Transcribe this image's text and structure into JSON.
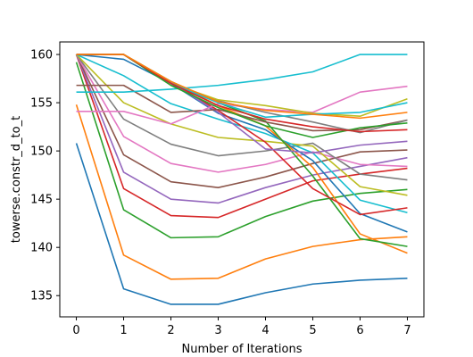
{
  "chart_data": {
    "type": "line",
    "title": "",
    "xlabel": "Number of Iterations",
    "ylabel": "towerse.constr_d_to_t",
    "x": [
      0,
      1,
      2,
      3,
      4,
      5,
      6,
      7
    ],
    "xticks": [
      "0",
      "1",
      "2",
      "3",
      "4",
      "5",
      "6",
      "7"
    ],
    "yticks": [
      "135",
      "140",
      "145",
      "150",
      "155",
      "160"
    ],
    "xlim": [
      -0.35,
      7.35
    ],
    "ylim": [
      132.8,
      161.3
    ],
    "grid": false,
    "legend": "none",
    "series": [
      {
        "color": "#1f77b4",
        "values": [
          150.8,
          135.7,
          134.1,
          134.1,
          135.3,
          136.2,
          136.6,
          136.8
        ]
      },
      {
        "color": "#ff7f0e",
        "values": [
          154.8,
          139.2,
          136.7,
          136.8,
          138.8,
          140.1,
          140.8,
          141.1
        ]
      },
      {
        "color": "#2ca02c",
        "values": [
          159.2,
          143.9,
          141.0,
          141.1,
          143.2,
          144.8,
          145.6,
          146.0
        ]
      },
      {
        "color": "#d62728",
        "values": [
          160.0,
          146.1,
          143.3,
          143.1,
          145.0,
          146.9,
          147.6,
          148.2
        ]
      },
      {
        "color": "#9467bd",
        "values": [
          160.0,
          147.8,
          145.0,
          144.6,
          146.2,
          147.5,
          148.4,
          149.3
        ]
      },
      {
        "color": "#8c564b",
        "values": [
          160.0,
          149.6,
          146.8,
          146.2,
          147.3,
          148.7,
          149.9,
          150.1
        ]
      },
      {
        "color": "#e377c2",
        "values": [
          160.0,
          151.5,
          148.7,
          147.8,
          148.6,
          149.9,
          148.6,
          148.4
        ]
      },
      {
        "color": "#7f7f7f",
        "values": [
          160.0,
          153.3,
          150.7,
          149.5,
          150.0,
          150.8,
          147.6,
          147.0
        ]
      },
      {
        "color": "#bcbd22",
        "values": [
          160.0,
          155.0,
          152.8,
          151.4,
          151.0,
          150.5,
          146.3,
          145.4
        ]
      },
      {
        "color": "#17becf",
        "values": [
          160.0,
          157.8,
          154.9,
          153.3,
          151.8,
          149.8,
          144.9,
          143.6
        ]
      },
      {
        "color": "#1f77b4",
        "values": [
          160.0,
          159.5,
          157.0,
          153.9,
          152.2,
          149.0,
          143.5,
          141.6
        ]
      },
      {
        "color": "#ff7f0e",
        "values": [
          160.0,
          160.0,
          157.2,
          154.7,
          152.6,
          148.3,
          141.4,
          139.4
        ]
      },
      {
        "color": "#2ca02c",
        "values": [
          160.0,
          160.0,
          157.2,
          155.0,
          153.1,
          147.4,
          140.9,
          140.1
        ]
      },
      {
        "color": "#d62728",
        "values": [
          160.0,
          160.0,
          157.1,
          154.2,
          150.9,
          146.1,
          143.4,
          144.1
        ]
      },
      {
        "color": "#9467bd",
        "values": [
          160.0,
          160.0,
          157.1,
          154.0,
          150.2,
          149.8,
          150.6,
          151.0
        ]
      },
      {
        "color": "#8c564b",
        "values": [
          156.8,
          156.8,
          154.0,
          154.3,
          153.0,
          152.1,
          152.2,
          153.2
        ]
      },
      {
        "color": "#e377c2",
        "values": [
          154.1,
          154.1,
          152.8,
          154.9,
          154.3,
          154.0,
          156.1,
          156.7
        ]
      },
      {
        "color": "#7f7f7f",
        "values": [
          160.0,
          160.0,
          157.0,
          155.2,
          154.0,
          153.0,
          151.9,
          153.2
        ]
      },
      {
        "color": "#bcbd22",
        "values": [
          160.0,
          160.0,
          157.0,
          155.3,
          154.7,
          153.9,
          153.6,
          155.4
        ]
      },
      {
        "color": "#17becf",
        "values": [
          156.1,
          156.1,
          156.4,
          156.8,
          157.4,
          158.2,
          160.0,
          160.0
        ]
      },
      {
        "color": "#17becf",
        "values": [
          160.0,
          160.0,
          157.0,
          155.0,
          153.5,
          153.8,
          154.0,
          155.0
        ]
      },
      {
        "color": "#2ca02c",
        "values": [
          160.0,
          160.0,
          156.8,
          154.5,
          152.6,
          151.4,
          152.4,
          152.9
        ]
      },
      {
        "color": "#d62728",
        "values": [
          160.0,
          160.0,
          157.0,
          154.7,
          153.3,
          152.5,
          152.0,
          152.2
        ]
      },
      {
        "color": "#ff7f0e",
        "values": [
          160.0,
          160.0,
          157.2,
          155.1,
          154.2,
          153.8,
          153.4,
          154.0
        ]
      }
    ]
  }
}
